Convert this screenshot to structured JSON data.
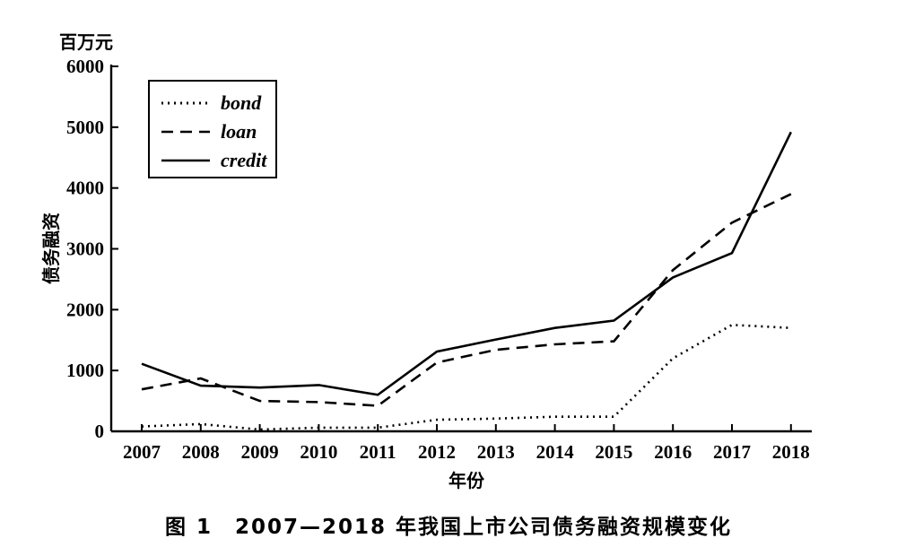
{
  "chart_data": {
    "type": "line",
    "unit_label": "百万元",
    "ylabel": "债务融资",
    "xlabel": "年份",
    "caption": "图 1　2007—2018 年我国上市公司债务融资规模变化",
    "x": [
      "2007",
      "2008",
      "2009",
      "2010",
      "2011",
      "2012",
      "2013",
      "2014",
      "2015",
      "2016",
      "2017",
      "2018"
    ],
    "ylim": [
      0,
      6000
    ],
    "yticks": [
      0,
      1000,
      2000,
      3000,
      4000,
      5000,
      6000
    ],
    "legend_position": "top-left",
    "grid": false,
    "series": [
      {
        "name": "bond",
        "style": "dotted",
        "values": [
          80,
          120,
          30,
          60,
          60,
          190,
          210,
          240,
          240,
          1200,
          1750,
          1700
        ]
      },
      {
        "name": "loan",
        "style": "dashed",
        "values": [
          690,
          870,
          500,
          480,
          420,
          1130,
          1340,
          1430,
          1480,
          2650,
          3430,
          3900
        ]
      },
      {
        "name": "credit",
        "style": "solid",
        "values": [
          1110,
          750,
          720,
          760,
          600,
          1310,
          1510,
          1700,
          1820,
          2530,
          2930,
          4920
        ]
      }
    ]
  }
}
